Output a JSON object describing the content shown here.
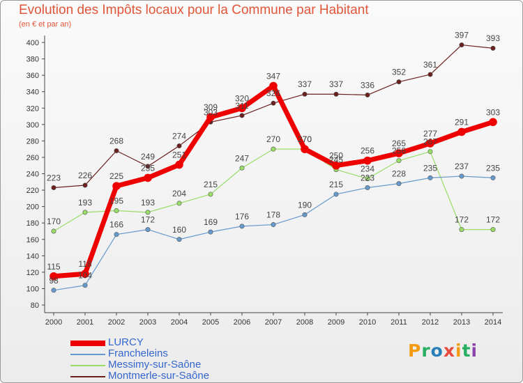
{
  "title": "Evolution des Impôts locaux pour la Commune par Habitant",
  "subtitle": "(en € et par an)",
  "logo": {
    "text": "Proxiti",
    "colors": [
      "#f39c12",
      "#27ae60",
      "#2980b9",
      "#e74c3c",
      "#f39c12",
      "#27ae60",
      "#8e44ad"
    ]
  },
  "chart_data": {
    "type": "line",
    "x": [
      2000,
      2001,
      2002,
      2003,
      2004,
      2005,
      2006,
      2007,
      2008,
      2009,
      2010,
      2011,
      2012,
      2013,
      2014
    ],
    "ylim": [
      80,
      400
    ],
    "yticks": [
      80,
      100,
      120,
      140,
      160,
      180,
      200,
      220,
      240,
      260,
      280,
      300,
      320,
      340,
      360,
      380,
      400
    ],
    "grid": false,
    "legend_position": "bottom-left",
    "series": [
      {
        "name": "LURCY",
        "color": "#ee0000",
        "width": 7,
        "label_color": "#3366cc",
        "values": [
          115,
          118,
          225,
          235,
          251,
          309,
          320,
          347,
          270,
          250,
          256,
          265,
          277,
          291,
          303
        ]
      },
      {
        "name": "Francheleins",
        "color": "#6699cc",
        "width": 1.2,
        "label_color": "#3366cc",
        "values": [
          98,
          104,
          166,
          172,
          160,
          169,
          176,
          178,
          190,
          215,
          223,
          228,
          235,
          237,
          235
        ]
      },
      {
        "name": "Messimy-sur-Saône",
        "color": "#99dd66",
        "width": 1.2,
        "label_color": "#3366cc",
        "values": [
          170,
          193,
          195,
          193,
          204,
          215,
          247,
          270,
          270,
          245,
          234,
          256,
          267,
          172,
          172
        ]
      },
      {
        "name": "Montmerle-sur-Saône",
        "color": "#6b1f1f",
        "width": 1.2,
        "label_color": "#3366cc",
        "values": [
          223,
          226,
          268,
          249,
          274,
          303,
          311,
          326,
          337,
          337,
          336,
          352,
          361,
          397,
          393
        ]
      }
    ]
  }
}
